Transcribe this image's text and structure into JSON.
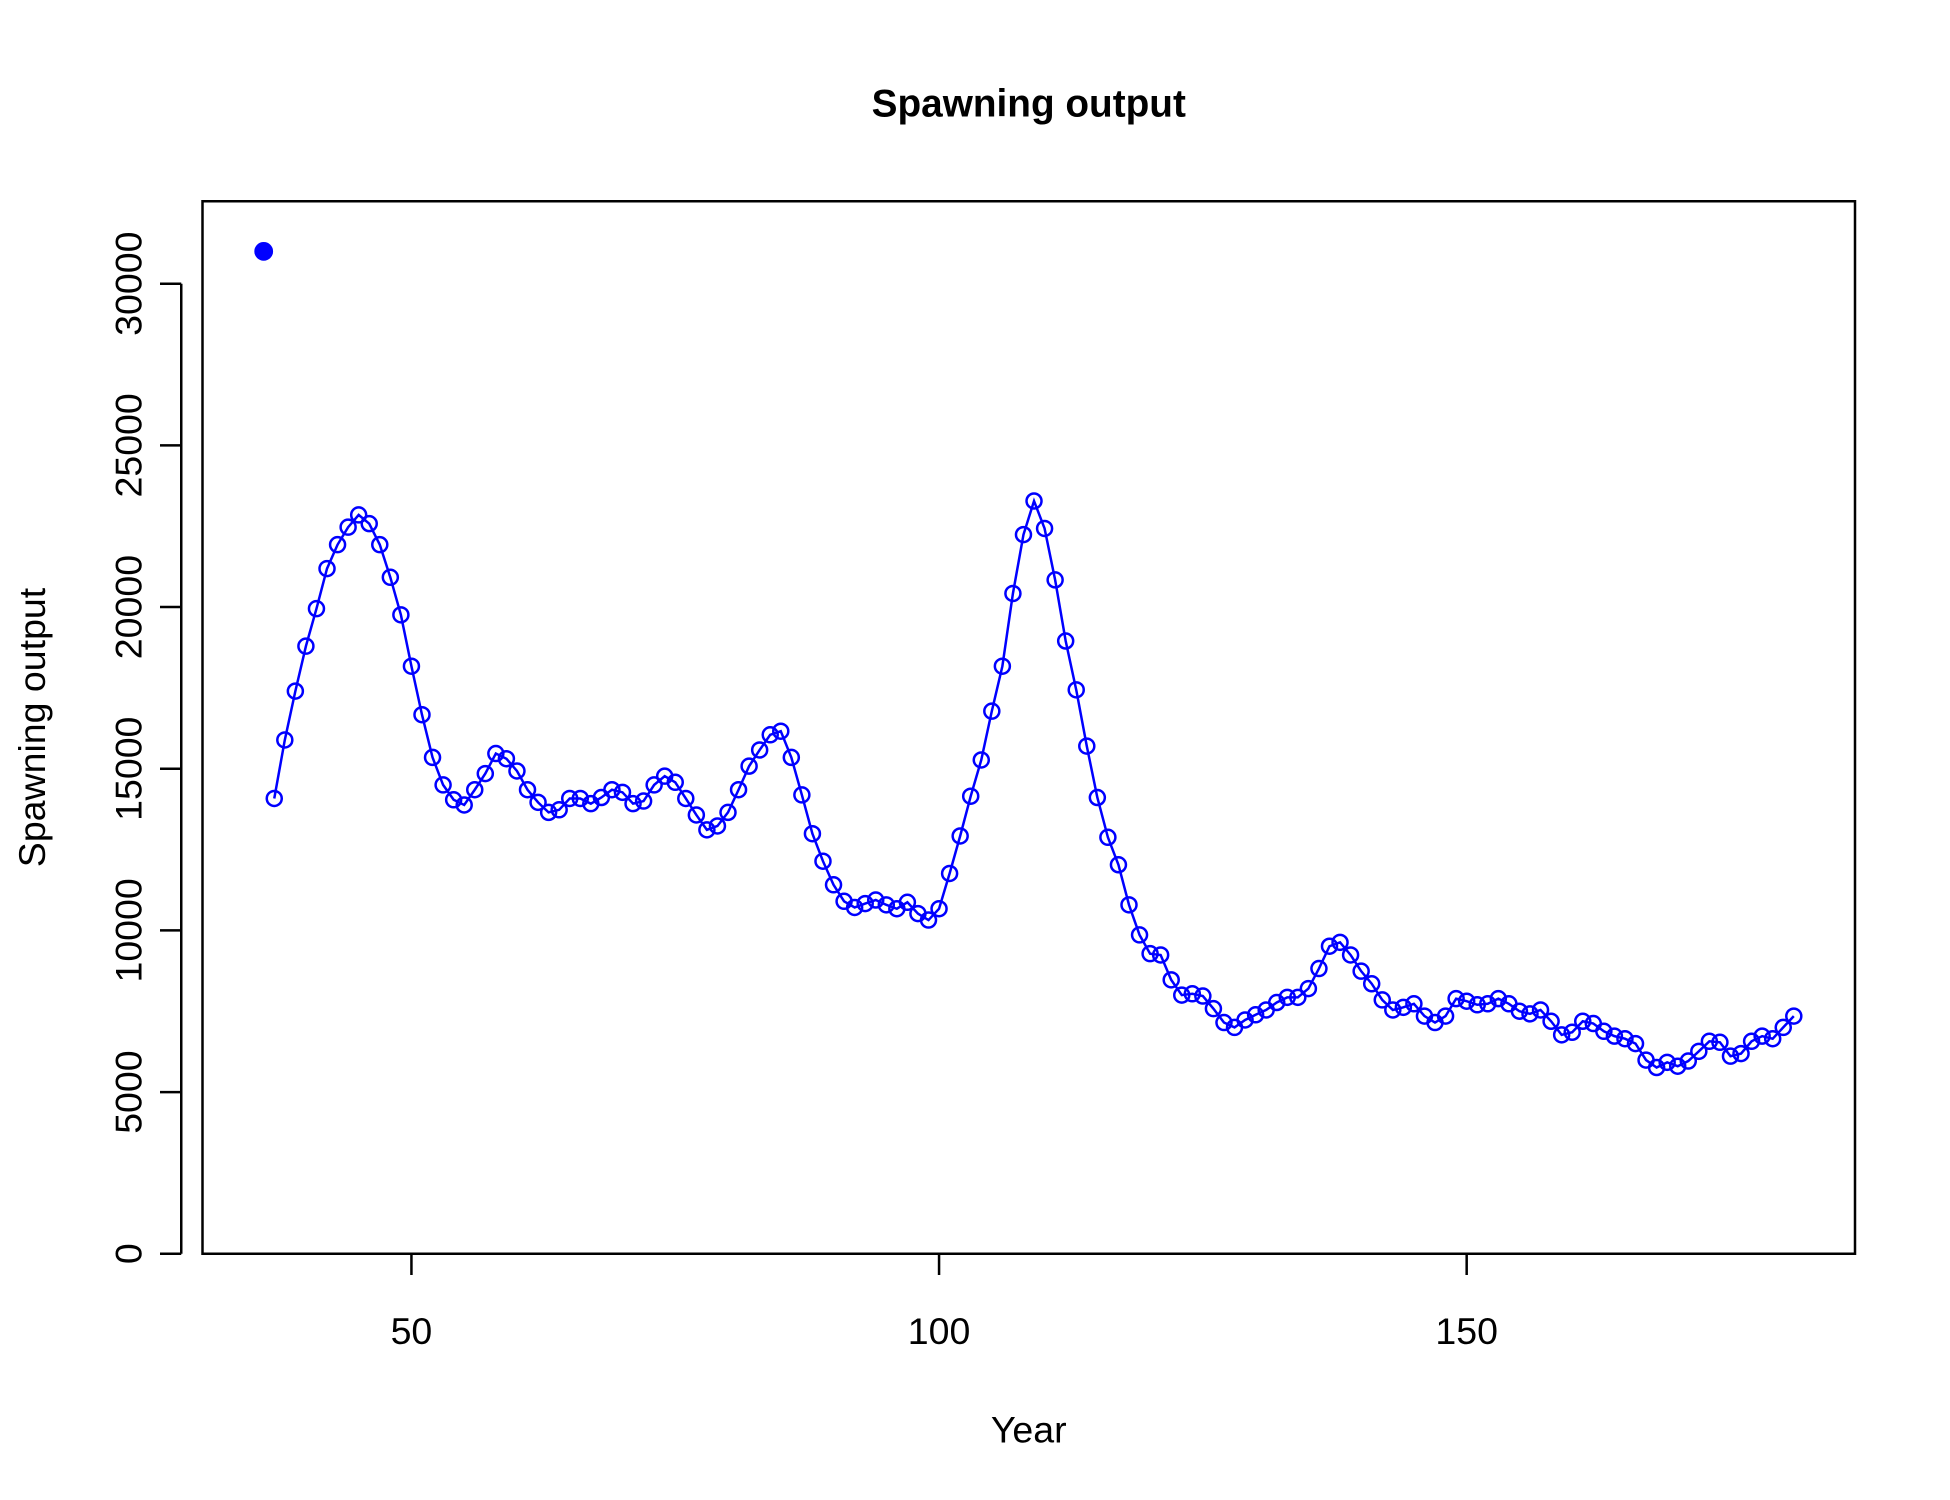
{
  "chart_data": {
    "type": "line",
    "title": "Spawning output",
    "x_label": "Year",
    "y_label": "Spawning output",
    "color": "#0000ff",
    "start_point": {
      "x": 36,
      "value": 31000
    },
    "x": [
      37,
      38,
      39,
      40,
      41,
      42,
      43,
      44,
      45,
      46,
      47,
      48,
      49,
      50,
      51,
      52,
      53,
      54,
      55,
      56,
      57,
      58,
      59,
      60,
      61,
      62,
      63,
      64,
      65,
      66,
      67,
      68,
      69,
      70,
      71,
      72,
      73,
      74,
      75,
      76,
      77,
      78,
      79,
      80,
      81,
      82,
      83,
      84,
      85,
      86,
      87,
      88,
      89,
      90,
      91,
      92,
      93,
      94,
      95,
      96,
      97,
      98,
      99,
      100,
      101,
      102,
      103,
      104,
      105,
      106,
      107,
      108,
      109,
      110,
      111,
      112,
      113,
      114,
      115,
      116,
      117,
      118,
      119,
      120,
      121,
      122,
      123,
      124,
      125,
      126,
      127,
      128,
      129,
      130,
      131,
      132,
      133,
      134,
      135,
      136,
      137,
      138,
      139,
      140,
      141,
      142,
      143,
      144,
      145,
      146,
      147,
      148,
      149,
      150,
      151,
      152,
      153,
      154,
      155,
      156,
      157,
      158,
      159,
      160,
      161,
      162,
      163,
      164,
      165,
      166,
      167,
      168,
      169,
      170,
      171,
      172,
      173,
      174,
      175,
      176,
      177,
      178,
      179,
      180,
      181
    ],
    "values": [
      14080,
      15890,
      17400,
      18790,
      19950,
      21190,
      21930,
      22470,
      22850,
      22580,
      21930,
      20920,
      19760,
      18170,
      16670,
      15350,
      14500,
      14040,
      13880,
      14350,
      14850,
      15470,
      15310,
      14930,
      14350,
      13960,
      13650,
      13730,
      14080,
      14080,
      13920,
      14110,
      14350,
      14270,
      13920,
      14000,
      14500,
      14770,
      14580,
      14080,
      13570,
      13110,
      13230,
      13650,
      14350,
      15080,
      15580,
      16050,
      16160,
      15350,
      14190,
      12990,
      12140,
      11410,
      10900,
      10710,
      10830,
      10940,
      10790,
      10670,
      10870,
      10520,
      10320,
      10670,
      11760,
      12920,
      14150,
      15270,
      16780,
      18170,
      20420,
      22240,
      23280,
      22430,
      20840,
      18950,
      17440,
      15700,
      14110,
      12880,
      12030,
      10790,
      9860,
      9280,
      9240,
      8470,
      8000,
      8040,
      7970,
      7580,
      7150,
      7000,
      7230,
      7390,
      7540,
      7770,
      7930,
      7930,
      8200,
      8820,
      9510,
      9630,
      9240,
      8740,
      8350,
      7850,
      7540,
      7620,
      7730,
      7350,
      7150,
      7350,
      7890,
      7810,
      7700,
      7730,
      7890,
      7730,
      7500,
      7420,
      7540,
      7190,
      6770,
      6850,
      7190,
      7120,
      6880,
      6730,
      6650,
      6500,
      5990,
      5760,
      5920,
      5800,
      5960,
      6260,
      6570,
      6540,
      6110,
      6190,
      6570,
      6730,
      6650,
      7000,
      7350
    ],
    "xlim": [
      30.2,
      186.8
    ],
    "ylim": [
      0,
      32550
    ],
    "xticks": [
      50,
      100,
      150
    ],
    "yticks": [
      0,
      5000,
      10000,
      15000,
      20000,
      25000,
      30000
    ]
  }
}
